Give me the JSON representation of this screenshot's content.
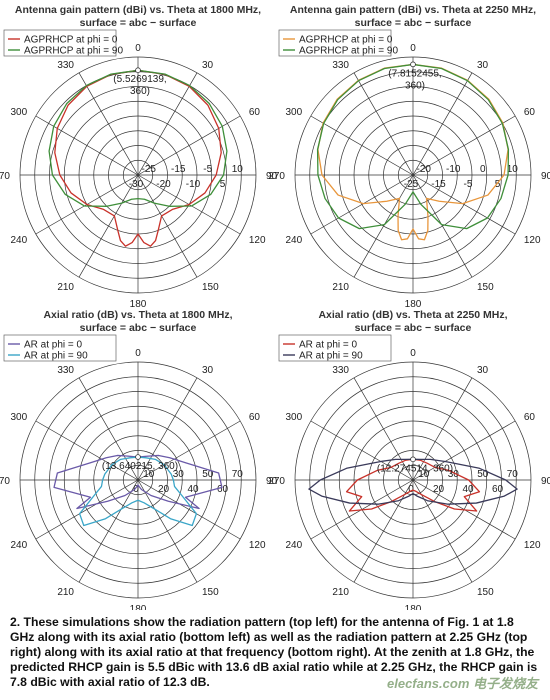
{
  "chart_data": [
    {
      "type": "polar",
      "title": "Antenna gain pattern (dBi) vs. Theta at 1800 MHz,",
      "subtitle": "surface = abc − surface",
      "angle_ticks": [
        "0",
        "30",
        "60",
        "90",
        "120",
        "150",
        "180",
        "210",
        "240",
        "270",
        "300",
        "330"
      ],
      "radial_ticks": [
        "-30",
        "-25",
        "-20",
        "-15",
        "-10",
        "-5",
        "5",
        "10"
      ],
      "radial_min": -30,
      "radial_max": 10,
      "legend_position": "top-left",
      "annotation": {
        "text": [
          "(5.5269139,",
          "360)"
        ],
        "theta": 0,
        "r": 5.53
      },
      "series": [
        {
          "name": "AGPRHCP at phi =  0",
          "color": "#c8322a",
          "theta": [
            0,
            15,
            30,
            45,
            60,
            75,
            90,
            105,
            120,
            135,
            150,
            160,
            165,
            170,
            175,
            180,
            185,
            190,
            195,
            200,
            210,
            225,
            240,
            255,
            270,
            285,
            300,
            315,
            330,
            345,
            360
          ],
          "r": [
            5.5,
            5.3,
            4.7,
            3.5,
            1.6,
            -0.8,
            -3.5,
            -6.5,
            -10,
            -13.5,
            -14,
            -10,
            -7,
            -5.5,
            -7,
            -10,
            -7,
            -5.5,
            -7,
            -10,
            -14,
            -13.5,
            -10,
            -6.5,
            -3.5,
            -0.8,
            1.6,
            3.5,
            4.7,
            5.3,
            5.5
          ]
        },
        {
          "name": "AGPRHCP at phi = 90",
          "color": "#3f8f3a",
          "theta": [
            0,
            15,
            30,
            45,
            60,
            75,
            90,
            105,
            120,
            135,
            150,
            165,
            180,
            195,
            210,
            225,
            240,
            255,
            270,
            285,
            300,
            315,
            330,
            345,
            360
          ],
          "r": [
            5.5,
            5.4,
            5.0,
            4.2,
            3.0,
            1.2,
            -1.0,
            -4.5,
            -9,
            -15,
            -19,
            -21.5,
            -22,
            -21.5,
            -19,
            -15,
            -9,
            -4.5,
            -1.0,
            1.2,
            3.0,
            4.2,
            5.0,
            5.4,
            5.5
          ]
        }
      ]
    },
    {
      "type": "polar",
      "title": "Antenna gain pattern (dBi) vs. Theta at 2250 MHz,",
      "subtitle": "surface = abc − surface",
      "angle_ticks": [
        "0",
        "30",
        "60",
        "90",
        "120",
        "150",
        "180",
        "210",
        "240",
        "270",
        "300",
        "330"
      ],
      "radial_ticks": [
        "-25",
        "-20",
        "-15",
        "-10",
        "-5",
        "0",
        "5",
        "10"
      ],
      "radial_min": -25,
      "radial_max": 10,
      "legend_position": "top-left",
      "annotation": {
        "text": [
          "(7.8152455,",
          "360)"
        ],
        "theta": 0,
        "r": 7.82
      },
      "series": [
        {
          "name": "AGPRHCP at phi =  0",
          "color": "#e8963c",
          "theta": [
            0,
            15,
            30,
            45,
            60,
            75,
            90,
            105,
            120,
            135,
            150,
            160,
            165,
            170,
            175,
            180,
            185,
            190,
            195,
            200,
            210,
            225,
            240,
            255,
            270,
            285,
            300,
            315,
            330,
            345,
            360
          ],
          "r": [
            7.8,
            7.8,
            7.4,
            6.8,
            5.8,
            4.2,
            2.0,
            -2,
            -8,
            -14,
            -17,
            -12,
            -8,
            -5.5,
            -6,
            -9,
            -6,
            -5.5,
            -8,
            -12,
            -17,
            -14,
            -8,
            -2,
            2.0,
            4.2,
            5.8,
            6.8,
            7.4,
            7.8,
            7.8
          ]
        },
        {
          "name": "AGPRHCP at phi = 90",
          "color": "#3f8f3a",
          "theta": [
            0,
            15,
            30,
            45,
            60,
            75,
            90,
            105,
            120,
            135,
            150,
            165,
            180,
            195,
            210,
            225,
            240,
            255,
            270,
            285,
            300,
            315,
            330,
            345,
            360
          ],
          "r": [
            7.8,
            7.7,
            7.3,
            6.6,
            5.6,
            4.3,
            3.2,
            2.0,
            0.5,
            -2.5,
            -8,
            -16,
            -20,
            -16,
            -8,
            -2.5,
            0.5,
            2.0,
            3.2,
            4.3,
            5.6,
            6.6,
            7.3,
            7.7,
            7.8
          ]
        }
      ]
    },
    {
      "type": "polar",
      "title": "Axial ratio (dB) vs. Theta at 1800 MHz,",
      "subtitle": "surface = abc − surface",
      "angle_ticks": [
        "0",
        "30",
        "60",
        "90",
        "120",
        "150",
        "180",
        "210",
        "240",
        "270",
        "300",
        "330"
      ],
      "radial_ticks": [
        "0",
        "10",
        "20",
        "30",
        "40",
        "50",
        "60",
        "70"
      ],
      "radial_min": 0,
      "radial_max": 70,
      "legend_position": "top-left",
      "annotation": {
        "text": [
          "(13.640215, 360)"
        ],
        "theta": 0,
        "r": 13.64
      },
      "series": [
        {
          "name": "AR at phi =  0",
          "color": "#6a5aa8",
          "theta": [
            0,
            20,
            40,
            55,
            70,
            85,
            95,
            110,
            115,
            125,
            140,
            160,
            170,
            180,
            190,
            200,
            220,
            235,
            245,
            250,
            265,
            275,
            290,
            305,
            320,
            340,
            360
          ],
          "r": [
            13.6,
            15,
            19,
            23,
            30,
            48,
            50,
            30,
            40,
            22,
            12,
            6,
            4,
            3,
            4,
            6,
            12,
            22,
            40,
            30,
            50,
            48,
            30,
            23,
            19,
            15,
            13.6
          ]
        },
        {
          "name": "AR at phi = 90",
          "color": "#3aa6c8",
          "theta": [
            0,
            20,
            40,
            60,
            80,
            90,
            100,
            110,
            120,
            130,
            140,
            150,
            165,
            180,
            195,
            210,
            220,
            230,
            240,
            250,
            260,
            270,
            280,
            300,
            320,
            340,
            360
          ],
          "r": [
            13.6,
            14,
            16,
            18,
            20,
            21,
            22,
            28,
            40,
            42,
            30,
            20,
            14,
            12,
            14,
            20,
            30,
            42,
            40,
            28,
            22,
            21,
            20,
            18,
            16,
            14,
            13.6
          ]
        }
      ]
    },
    {
      "type": "polar",
      "title": "Axial ratio (dB) vs. Theta at 2250 MHz,",
      "subtitle": "surface = abc − surface",
      "angle_ticks": [
        "0",
        "30",
        "60",
        "90",
        "120",
        "150",
        "180",
        "210",
        "240",
        "270",
        "300",
        "330"
      ],
      "radial_ticks": [
        "0",
        "10",
        "20",
        "30",
        "40",
        "50",
        "60",
        "70"
      ],
      "radial_min": 0,
      "radial_max": 70,
      "legend_position": "top-left",
      "annotation": {
        "text": [
          "(12.274514, 360)"
        ],
        "theta": 0,
        "r": 12.27
      },
      "series": [
        {
          "name": "AR at phi =  0",
          "color": "#c8322a",
          "theta": [
            0,
            20,
            40,
            60,
            75,
            90,
            100,
            108,
            116,
            125,
            135,
            150,
            165,
            180,
            195,
            210,
            225,
            235,
            244,
            252,
            260,
            270,
            285,
            300,
            320,
            340,
            360
          ],
          "r": [
            12.3,
            12.5,
            13,
            15,
            22,
            33,
            40,
            32,
            42,
            30,
            18,
            10,
            7,
            6,
            7,
            10,
            18,
            30,
            42,
            32,
            40,
            33,
            22,
            15,
            13,
            12.5,
            12.3
          ]
        },
        {
          "name": "AR at phi = 90",
          "color": "#3a3a5a",
          "theta": [
            0,
            20,
            40,
            60,
            70,
            80,
            90,
            95,
            100,
            110,
            125,
            145,
            165,
            180,
            195,
            215,
            235,
            250,
            260,
            265,
            270,
            280,
            290,
            300,
            320,
            340,
            360
          ],
          "r": [
            12.3,
            13,
            16,
            22,
            28,
            40,
            55,
            62,
            55,
            40,
            25,
            15,
            10,
            8,
            10,
            15,
            25,
            40,
            55,
            62,
            55,
            40,
            28,
            22,
            16,
            13,
            12.3
          ]
        }
      ]
    }
  ],
  "caption": "2. These simulations show the radiation pattern (top left) for the antenna of Fig. 1 at 1.8 GHz along with its axial ratio (bottom left) as well as the radiation pattern at 2.25 GHz (top right) along with its axial ratio at that frequency (bottom right). At the zenith at 1.8 GHz, the predicted RHCP gain is 5.5 dBic with 13.6 dB axial ratio while at 2.25 GHz, the RHCP gain is 7.8 dBic with axial ratio of 12.3 dB.",
  "watermark": "elecfans.com 电子发烧友"
}
